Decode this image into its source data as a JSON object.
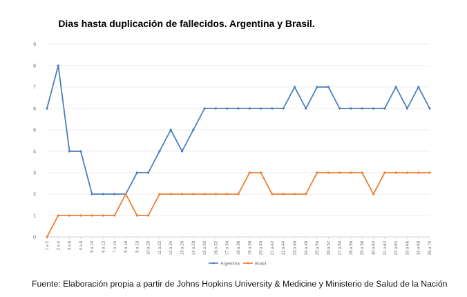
{
  "chart_data": {
    "type": "line",
    "title": "Dias hasta duplicación de fallecidos. Argentina y Brasil.",
    "xlabel": "",
    "ylabel": "",
    "ylim": [
      0,
      9
    ],
    "yticks": [
      0,
      1,
      2,
      3,
      4,
      5,
      6,
      7,
      8,
      9
    ],
    "grid": true,
    "legend_position": "bottom",
    "categories": [
      "1 a 2",
      "2 a 4",
      "3 a 6",
      "4 a 8",
      "5 a 10",
      "6 a 12",
      "7 a 14",
      "8 a 16",
      "9 a 18",
      "10 a 20",
      "11 a 22",
      "12 a 24",
      "13 a 26",
      "14 a 28",
      "15 a 30",
      "16 a 32",
      "17 a 34",
      "18 a 36",
      "19 a 38",
      "20 a 40",
      "21 a 42",
      "22 a 44",
      "23 a 46",
      "24 a 48",
      "25 a 50",
      "26 a 52",
      "27 a 54",
      "28 a 56",
      "29 a 58",
      "30 a 60",
      "31 a 62",
      "32 a 64",
      "33 a 66",
      "34 a 68",
      "35 a 70"
    ],
    "series": [
      {
        "name": "Argentina",
        "color": "#4a7ebb",
        "values": [
          6,
          8,
          4,
          4,
          2,
          2,
          2,
          2,
          3,
          3,
          4,
          5,
          4,
          5,
          6,
          6,
          6,
          6,
          6,
          6,
          6,
          6,
          7,
          6,
          7,
          7,
          6,
          6,
          6,
          6,
          6,
          7,
          6,
          7,
          6
        ]
      },
      {
        "name": "Brasil",
        "color": "#ed7d31",
        "values": [
          0,
          1,
          1,
          1,
          1,
          1,
          1,
          2,
          1,
          1,
          2,
          2,
          2,
          2,
          2,
          2,
          2,
          2,
          3,
          3,
          2,
          2,
          2,
          2,
          3,
          3,
          3,
          3,
          3,
          2,
          3,
          3,
          3,
          3,
          3
        ]
      }
    ]
  },
  "source_text": "Fuente: Elaboración propia a partir de Johns Hopkins University & Medicine y Ministerio de Salud de la Nación"
}
